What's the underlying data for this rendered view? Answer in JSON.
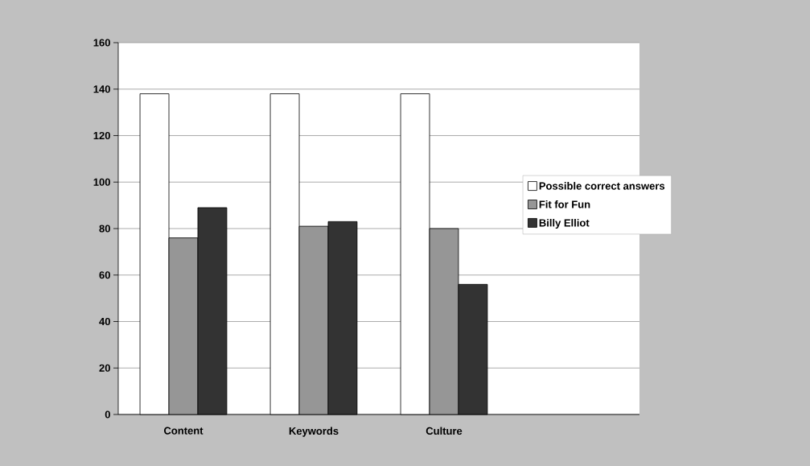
{
  "chart_data": {
    "type": "bar",
    "categories": [
      "Content",
      "Keywords",
      "Culture",
      null
    ],
    "series": [
      {
        "name": "Possible correct answers",
        "color": "#ffffff",
        "values": [
          138,
          138,
          138,
          null
        ]
      },
      {
        "name": "Fit for Fun",
        "color": "#969696",
        "values": [
          76,
          81,
          80,
          null
        ]
      },
      {
        "name": "Billy Elliot",
        "color": "#333333",
        "values": [
          89,
          83,
          56,
          null
        ]
      }
    ],
    "ylim": [
      0,
      160
    ],
    "yticks": [
      0,
      20,
      40,
      60,
      80,
      100,
      120,
      140,
      160
    ],
    "grid": "y",
    "legend": "right"
  }
}
